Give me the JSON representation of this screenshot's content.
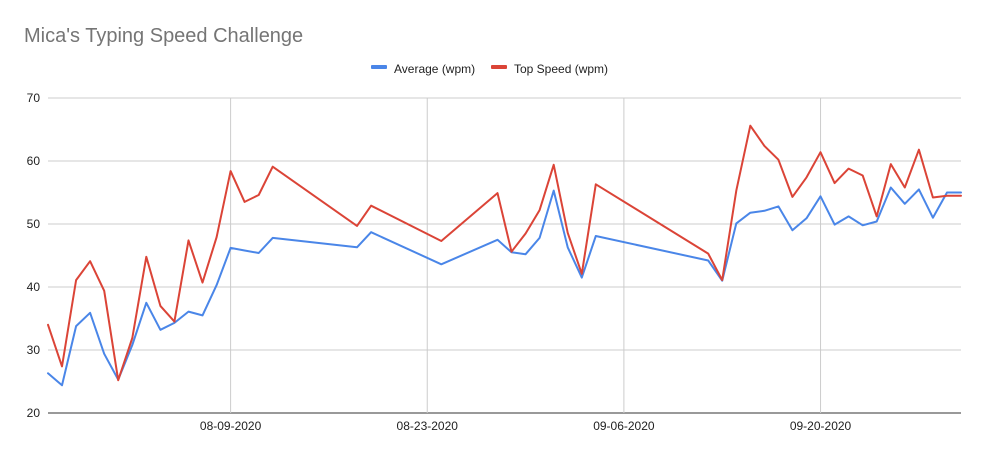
{
  "chart_data": {
    "type": "line",
    "title": "Mica's Typing Speed Challenge",
    "xlabel": "",
    "ylabel": "",
    "x_axis": {
      "type": "date",
      "range": [
        "2020-07-27",
        "2020-09-30"
      ],
      "ticks": [
        {
          "date": "2020-08-09",
          "label": "08-09-2020"
        },
        {
          "date": "2020-08-23",
          "label": "08-23-2020"
        },
        {
          "date": "2020-09-06",
          "label": "09-06-2020"
        },
        {
          "date": "2020-09-20",
          "label": "09-20-2020"
        }
      ]
    },
    "y_axis": {
      "range": [
        20,
        70
      ],
      "ticks": [
        20,
        30,
        40,
        50,
        60,
        70
      ]
    },
    "grid": true,
    "legend": "top-center",
    "x": [
      "2020-07-27",
      "2020-07-28",
      "2020-07-29",
      "2020-07-30",
      "2020-07-31",
      "2020-08-01",
      "2020-08-02",
      "2020-08-03",
      "2020-08-04",
      "2020-08-05",
      "2020-08-06",
      "2020-08-07",
      "2020-08-08",
      "2020-08-09",
      "2020-08-10",
      "2020-08-11",
      "2020-08-12",
      "2020-08-18",
      "2020-08-19",
      "2020-08-24",
      "2020-08-28",
      "2020-08-29",
      "2020-08-30",
      "2020-08-31",
      "2020-09-01",
      "2020-09-02",
      "2020-09-03",
      "2020-09-04",
      "2020-09-12",
      "2020-09-13",
      "2020-09-14",
      "2020-09-15",
      "2020-09-16",
      "2020-09-17",
      "2020-09-18",
      "2020-09-19",
      "2020-09-20",
      "2020-09-21",
      "2020-09-22",
      "2020-09-23",
      "2020-09-24",
      "2020-09-25",
      "2020-09-26",
      "2020-09-27",
      "2020-09-28",
      "2020-09-29",
      "2020-09-30"
    ],
    "series": [
      {
        "name": "Average (wpm)",
        "color": "#4a86e8",
        "values": [
          26.3,
          24.4,
          33.8,
          35.9,
          29.4,
          25.3,
          30.8,
          37.5,
          33.2,
          34.3,
          36.1,
          35.5,
          40.3,
          46.2,
          45.8,
          45.4,
          47.8,
          46.3,
          48.7,
          43.6,
          47.5,
          45.5,
          45.2,
          47.8,
          55.3,
          46.3,
          41.5,
          48.1,
          44.2,
          41.0,
          50.1,
          51.8,
          52.1,
          52.8,
          49.0,
          50.9,
          54.4,
          49.9,
          51.2,
          49.8,
          50.4,
          55.8,
          53.2,
          55.5,
          51.0,
          55.0,
          55.0
        ]
      },
      {
        "name": "Top Speed (wpm)",
        "color": "#db4437",
        "values": [
          34.0,
          27.4,
          41.1,
          44.1,
          39.4,
          25.2,
          31.9,
          44.8,
          37.0,
          34.5,
          47.4,
          40.7,
          47.9,
          58.4,
          53.5,
          54.6,
          59.1,
          49.7,
          52.9,
          47.3,
          54.9,
          45.6,
          48.5,
          52.2,
          59.4,
          48.6,
          42.1,
          56.3,
          45.3,
          41.1,
          55.3,
          65.6,
          62.4,
          60.2,
          54.3,
          57.4,
          61.4,
          56.5,
          58.8,
          57.7,
          51.2,
          59.5,
          55.8,
          61.8,
          54.2,
          54.5,
          54.5
        ]
      }
    ]
  }
}
